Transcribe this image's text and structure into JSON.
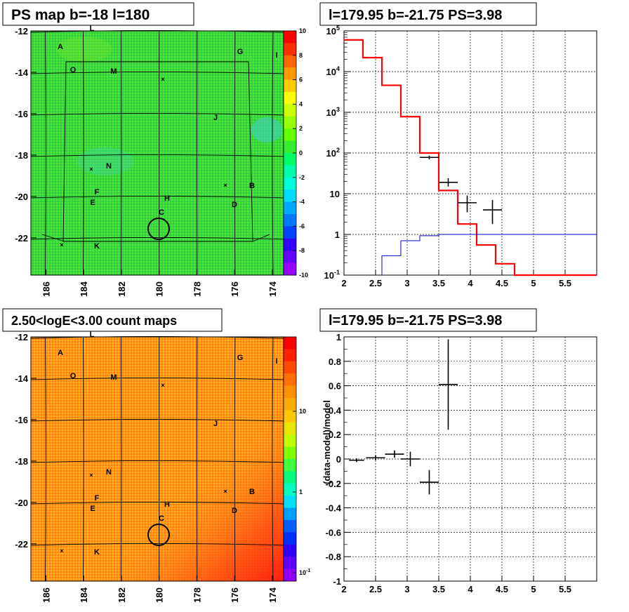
{
  "chart_data": [
    {
      "type": "heatmap",
      "title": "PS map b=-18 l=180",
      "x_ticks": [
        "186",
        "184",
        "182",
        "180",
        "178",
        "176",
        "174"
      ],
      "y_ticks": [
        "-12",
        "-14",
        "-16",
        "-18",
        "-20",
        "-22"
      ],
      "xlim": [
        186.8,
        173.4
      ],
      "ylim": [
        -23.8,
        -12
      ],
      "colorbar": {
        "ticks": [
          "10",
          "8",
          "6",
          "4",
          "2",
          "0",
          "-2",
          "-4",
          "-6",
          "-8",
          "-10"
        ],
        "range": [
          -10,
          10
        ]
      },
      "source_labels": [
        "L",
        "A",
        "O",
        "M",
        "G",
        "I",
        "J",
        "N",
        "B",
        "F",
        "H",
        "E",
        "D",
        "C",
        "K"
      ]
    },
    {
      "type": "line",
      "title": "l=179.95 b=-21.75 PS=3.98",
      "y_scale": "log",
      "xlim": [
        2,
        6
      ],
      "ylim": [
        0.1,
        100000
      ],
      "x_ticks": [
        "2",
        "2.5",
        "3",
        "3.5",
        "4",
        "4.5",
        "5",
        "5.5"
      ],
      "y_ticks": [
        "10^5",
        "10^4",
        "10^3",
        "10^2",
        "10",
        "1",
        "10^-1"
      ],
      "series": [
        {
          "color": "#ff0000",
          "edges": [
            2,
            2.3,
            2.6,
            2.9,
            3.2,
            3.5,
            3.8,
            4.1,
            4.4,
            4.7,
            6
          ],
          "values": [
            60000,
            22000,
            4600,
            780,
            100,
            12,
            1.8,
            0.55,
            0.19,
            0.1
          ]
        },
        {
          "color": "#0000cc",
          "edges": [
            2.6,
            2.9,
            3.2,
            3.5,
            6
          ],
          "values": [
            0.3,
            0.7,
            0.93,
            1.0
          ]
        },
        {
          "color": "#000000",
          "points": [
            {
              "x": 3.35,
              "y": 78,
              "xerr": 0.15,
              "ylo": 70,
              "yhi": 86
            },
            {
              "x": 3.65,
              "y": 19,
              "xerr": 0.15,
              "ylo": 15,
              "yhi": 24
            },
            {
              "x": 3.95,
              "y": 6,
              "xerr": 0.15,
              "ylo": 3.5,
              "yhi": 9
            },
            {
              "x": 4.35,
              "y": 4,
              "xerr": 0.15,
              "ylo": 1.8,
              "yhi": 7
            }
          ]
        }
      ]
    },
    {
      "type": "heatmap",
      "title": "2.50<logE<3.00 count maps",
      "x_ticks": [
        "186",
        "184",
        "182",
        "180",
        "178",
        "176",
        "174"
      ],
      "y_ticks": [
        "-12",
        "-14",
        "-16",
        "-18",
        "-20",
        "-22"
      ],
      "xlim": [
        186.8,
        173.4
      ],
      "ylim": [
        -23.8,
        -12
      ],
      "colorbar": {
        "ticks": [
          "10",
          "1",
          "10^-1"
        ],
        "scale": "log"
      },
      "source_labels": [
        "L",
        "A",
        "O",
        "M",
        "G",
        "I",
        "J",
        "N",
        "B",
        "F",
        "H",
        "E",
        "D",
        "C",
        "K"
      ]
    },
    {
      "type": "scatter",
      "title": "l=179.95 b=-21.75 PS=3.98",
      "ylabel": "(data-model)/model",
      "xlim": [
        2,
        6
      ],
      "ylim": [
        -1,
        1
      ],
      "x_ticks": [
        "2",
        "2.5",
        "3",
        "3.5",
        "4",
        "4.5",
        "5",
        "5.5"
      ],
      "y_ticks": [
        "1",
        "0.8",
        "0.6",
        "0.4",
        "0.2",
        "0",
        "-0.2",
        "-0.4",
        "-0.6",
        "-0.8",
        "-1"
      ],
      "points": [
        {
          "x": 2.2,
          "y": -0.01,
          "xerr": 0.12,
          "yerr": 0.015
        },
        {
          "x": 2.5,
          "y": 0.01,
          "xerr": 0.15,
          "yerr": 0.02
        },
        {
          "x": 2.8,
          "y": 0.04,
          "xerr": 0.15,
          "yerr": 0.03
        },
        {
          "x": 3.05,
          "y": 0.0,
          "xerr": 0.15,
          "yerr": 0.06
        },
        {
          "x": 3.35,
          "y": -0.19,
          "xerr": 0.15,
          "yerr": 0.1
        },
        {
          "x": 3.65,
          "y": 0.61,
          "xerr": 0.15,
          "yerr": 0.37
        }
      ]
    }
  ]
}
